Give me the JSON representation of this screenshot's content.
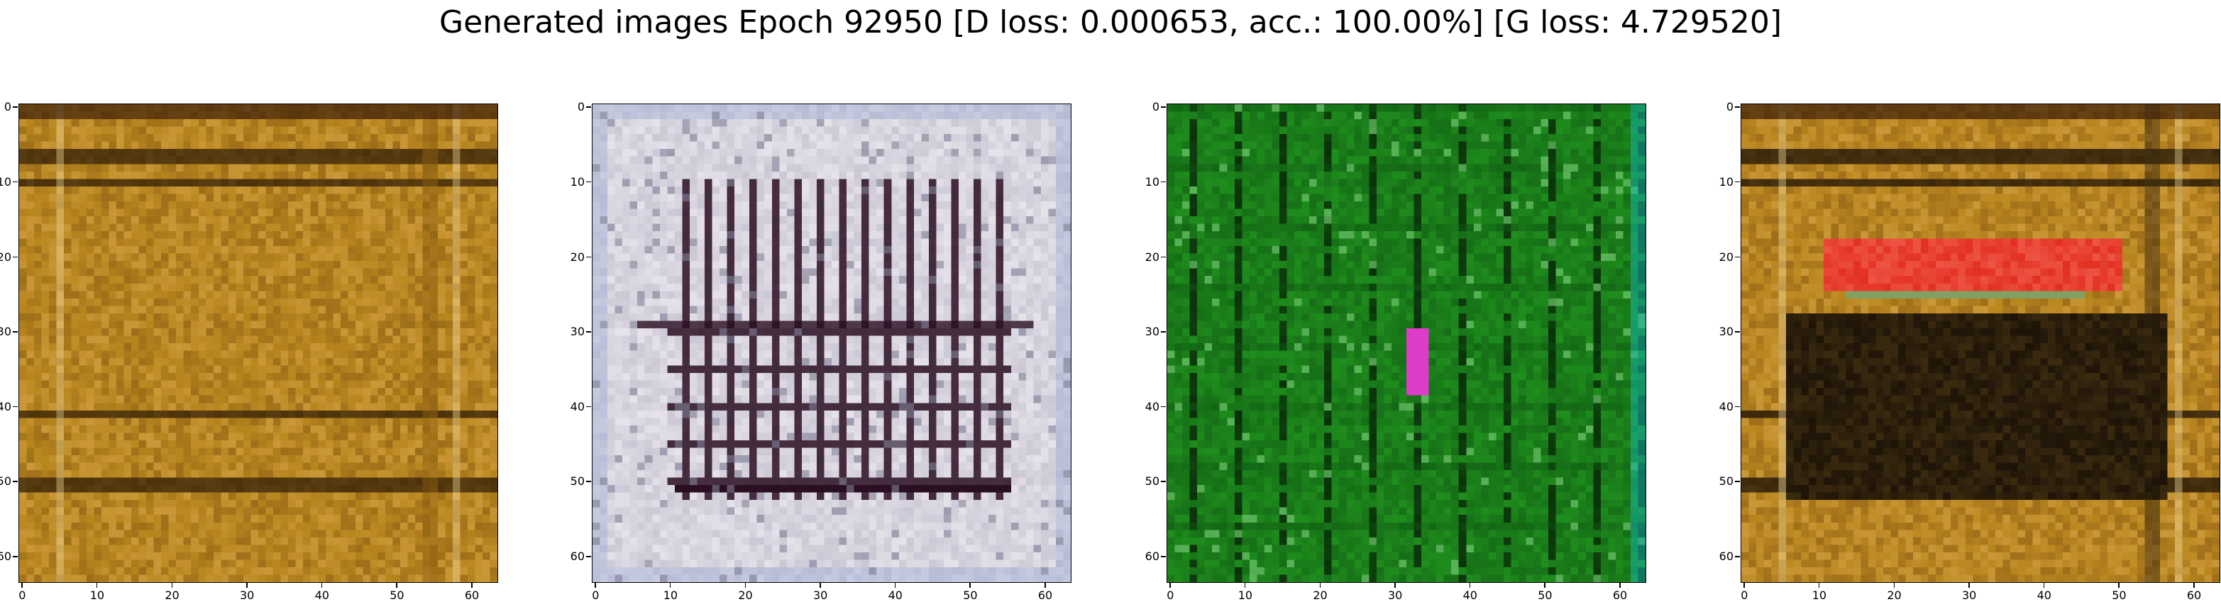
{
  "figure": {
    "title": "Generated images Epoch 92950 [D loss: 0.000653, acc.: 100.00%] [G loss: 4.729520]"
  },
  "axes": {
    "ticks": [
      "0",
      "10",
      "20",
      "30",
      "40",
      "50",
      "60"
    ]
  },
  "panels": [
    {
      "name": "sample-1",
      "theme": "gold",
      "palette": [
        "#b8861e",
        "#8a5d10",
        "#e3b45a",
        "#2a1705"
      ]
    },
    {
      "name": "sample-2",
      "theme": "grid-gray",
      "palette": [
        "#e6e2ea",
        "#b9b6c7",
        "#2a0e22",
        "#7f7f95"
      ]
    },
    {
      "name": "sample-3",
      "theme": "green",
      "palette": [
        "#1f8d1d",
        "#0f5a12",
        "#70c66d",
        "#020a02"
      ]
    },
    {
      "name": "sample-4",
      "theme": "gold-red",
      "palette": [
        "#b9861f",
        "#3a2a0f",
        "#e22f21",
        "#100904"
      ]
    }
  ]
}
